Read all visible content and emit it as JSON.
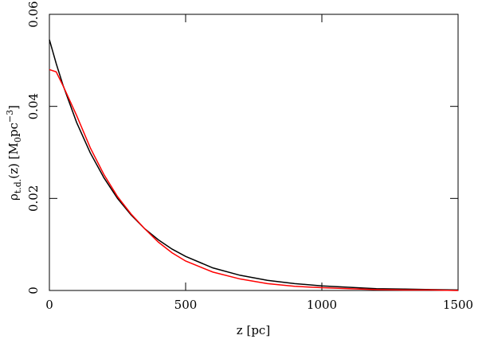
{
  "chart_data": {
    "type": "line",
    "x_label": "z [pc]",
    "y_label": [
      "ρ",
      "t.d.",
      "(z)  [M",
      "0",
      "pc",
      "−3",
      "]"
    ],
    "x": [
      0,
      25,
      50,
      100,
      150,
      200,
      250,
      300,
      350,
      400,
      450,
      500,
      600,
      700,
      800,
      900,
      1000,
      1100,
      1200,
      1300,
      1400,
      1500
    ],
    "series": [
      {
        "color": "#000000",
        "values": [
          0.0545,
          0.0493,
          0.0446,
          0.0365,
          0.0299,
          0.0245,
          0.02,
          0.0164,
          0.0134,
          0.011,
          0.009,
          0.0074,
          0.0049,
          0.0033,
          0.0022,
          0.0015,
          0.001,
          0.0007,
          0.0004,
          0.0003,
          0.0002,
          0.0001
        ]
      },
      {
        "color": "#ff0000",
        "values": [
          0.048,
          0.0475,
          0.0445,
          0.038,
          0.031,
          0.0252,
          0.0204,
          0.0166,
          0.0134,
          0.0105,
          0.0082,
          0.0064,
          0.004,
          0.0025,
          0.0015,
          0.0009,
          0.0006,
          0.0004,
          0.0002,
          0.0001,
          0.0001,
          0
        ]
      }
    ],
    "xlim": [
      0,
      1500
    ],
    "ylim": [
      0,
      0.06
    ],
    "xticks": [
      0,
      500,
      1000,
      1500
    ],
    "yticks": [
      0,
      0.02,
      0.04,
      0.06
    ]
  }
}
